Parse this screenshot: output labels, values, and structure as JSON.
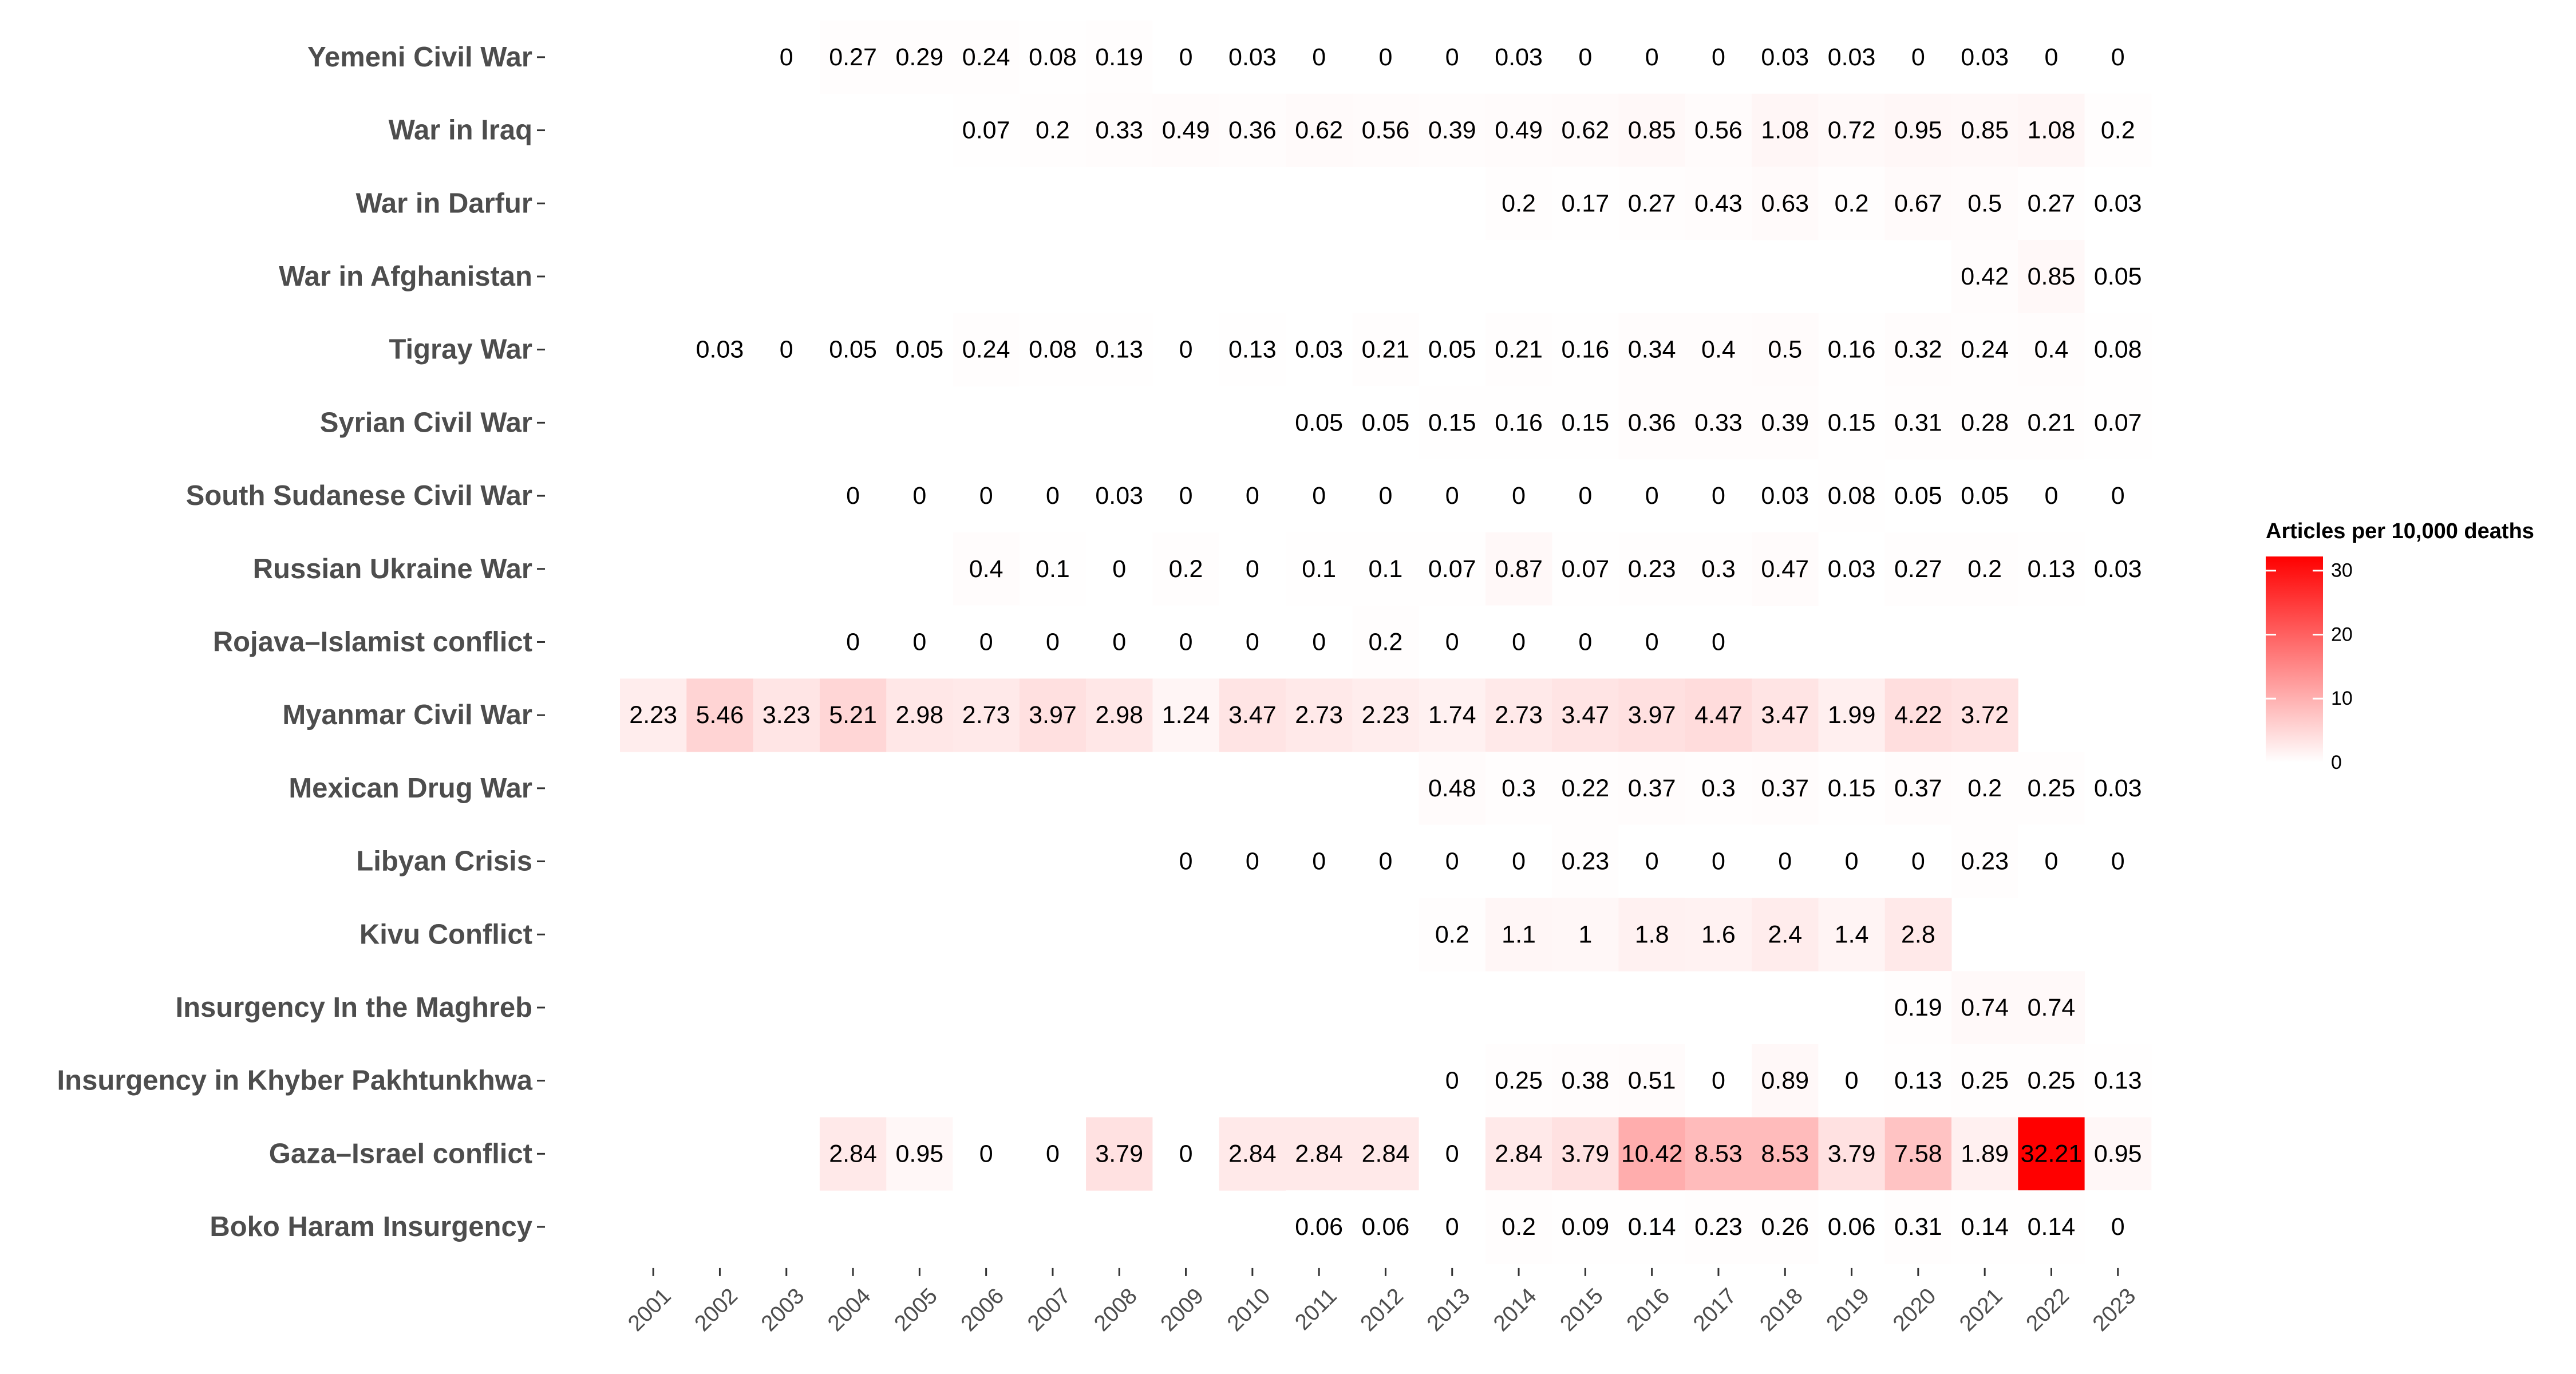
{
  "chart_data": {
    "type": "heatmap",
    "title": "",
    "xlabel": "",
    "ylabel": "",
    "x": [
      "2001",
      "2002",
      "2003",
      "2004",
      "2005",
      "2006",
      "2007",
      "2008",
      "2009",
      "2010",
      "2011",
      "2012",
      "2013",
      "2014",
      "2015",
      "2016",
      "2017",
      "2018",
      "2019",
      "2020",
      "2021",
      "2022",
      "2023"
    ],
    "y": [
      "Yemeni Civil War",
      "War in Iraq",
      "War in Darfur",
      "War in Afghanistan",
      "Tigray War",
      "Syrian Civil War",
      "South Sudanese Civil War",
      "Russian Ukraine War",
      "Rojava–Islamist conflict",
      "Myanmar Civil War",
      "Mexican Drug War",
      "Libyan Crisis",
      "Kivu Conflict",
      "Insurgency In the Maghreb",
      "Insurgency in Khyber Pakhtunkhwa",
      "Gaza–Israel conflict",
      "Boko Haram Insurgency"
    ],
    "values": [
      [
        null,
        null,
        0,
        0.27,
        0.29,
        0.24,
        0.08,
        0.19,
        0,
        0.03,
        0,
        0,
        0,
        0.03,
        0,
        0,
        0,
        0.03,
        0.03,
        0,
        0.03,
        0,
        0
      ],
      [
        null,
        null,
        null,
        null,
        null,
        0.07,
        0.2,
        0.33,
        0.49,
        0.36,
        0.62,
        0.56,
        0.39,
        0.49,
        0.62,
        0.85,
        0.56,
        1.08,
        0.72,
        0.95,
        0.85,
        1.08,
        0.2
      ],
      [
        null,
        null,
        null,
        null,
        null,
        null,
        null,
        null,
        null,
        null,
        null,
        null,
        null,
        0.2,
        0.17,
        0.27,
        0.43,
        0.63,
        0.2,
        0.67,
        0.5,
        0.27,
        0.03
      ],
      [
        null,
        null,
        null,
        null,
        null,
        null,
        null,
        null,
        null,
        null,
        null,
        null,
        null,
        null,
        null,
        null,
        null,
        null,
        null,
        null,
        0.42,
        0.85,
        0.05
      ],
      [
        null,
        0.03,
        0,
        0.05,
        0.05,
        0.24,
        0.08,
        0.13,
        0,
        0.13,
        0.03,
        0.21,
        0.05,
        0.21,
        0.16,
        0.34,
        0.4,
        0.5,
        0.16,
        0.32,
        0.24,
        0.4,
        0.08
      ],
      [
        null,
        null,
        null,
        null,
        null,
        null,
        null,
        null,
        null,
        null,
        0.05,
        0.05,
        0.15,
        0.16,
        0.15,
        0.36,
        0.33,
        0.39,
        0.15,
        0.31,
        0.28,
        0.21,
        0.07
      ],
      [
        null,
        null,
        null,
        0,
        0,
        0,
        0,
        0.03,
        0,
        0,
        0,
        0,
        0,
        0,
        0,
        0,
        0,
        0.03,
        0.08,
        0.05,
        0.05,
        0,
        0
      ],
      [
        null,
        null,
        null,
        null,
        null,
        0.4,
        0.1,
        0,
        0.2,
        0,
        0.1,
        0.1,
        0.07,
        0.87,
        0.07,
        0.23,
        0.3,
        0.47,
        0.03,
        0.27,
        0.2,
        0.13,
        0.03
      ],
      [
        null,
        null,
        null,
        0,
        0,
        0,
        0,
        0,
        0,
        0,
        0,
        0.2,
        0,
        0,
        0,
        0,
        0,
        null,
        null,
        null,
        null,
        null,
        null
      ],
      [
        2.23,
        5.46,
        3.23,
        5.21,
        2.98,
        2.73,
        3.97,
        2.98,
        1.24,
        3.47,
        2.73,
        2.23,
        1.74,
        2.73,
        3.47,
        3.97,
        4.47,
        3.47,
        1.99,
        4.22,
        3.72,
        null,
        null
      ],
      [
        null,
        null,
        null,
        null,
        null,
        null,
        null,
        null,
        null,
        null,
        null,
        null,
        0.48,
        0.3,
        0.22,
        0.37,
        0.3,
        0.37,
        0.15,
        0.37,
        0.2,
        0.25,
        0.03
      ],
      [
        null,
        null,
        null,
        null,
        null,
        null,
        null,
        null,
        0,
        0,
        0,
        0,
        0,
        0,
        0.23,
        0,
        0,
        0,
        0,
        0,
        0.23,
        0,
        0
      ],
      [
        null,
        null,
        null,
        null,
        null,
        null,
        null,
        null,
        null,
        null,
        null,
        null,
        0.2,
        1.1,
        1,
        1.8,
        1.6,
        2.4,
        1.4,
        2.8,
        null,
        null,
        null
      ],
      [
        null,
        null,
        null,
        null,
        null,
        null,
        null,
        null,
        null,
        null,
        null,
        null,
        null,
        null,
        null,
        null,
        null,
        null,
        null,
        0.19,
        0.74,
        0.74,
        null
      ],
      [
        null,
        null,
        null,
        null,
        null,
        null,
        null,
        null,
        null,
        null,
        null,
        null,
        0,
        0.25,
        0.38,
        0.51,
        0,
        0.89,
        0,
        0.13,
        0.25,
        0.25,
        0.13
      ],
      [
        null,
        null,
        null,
        2.84,
        0.95,
        0,
        0,
        3.79,
        0,
        2.84,
        2.84,
        2.84,
        0,
        2.84,
        3.79,
        10.42,
        8.53,
        8.53,
        3.79,
        7.58,
        1.89,
        32.21,
        0.95
      ],
      [
        null,
        null,
        null,
        null,
        null,
        null,
        null,
        null,
        null,
        null,
        0.06,
        0.06,
        0,
        0.2,
        0.09,
        0.14,
        0.23,
        0.26,
        0.06,
        0.31,
        0.14,
        0.14,
        0
      ]
    ],
    "colorscale": {
      "low": "#ffffff",
      "high": "#ff0000",
      "min": 0,
      "max": 32.21
    },
    "legend": {
      "title": "Articles per 10,000 deaths",
      "ticks": [
        0,
        10,
        20,
        30
      ],
      "placement": "right"
    },
    "grid": false
  }
}
